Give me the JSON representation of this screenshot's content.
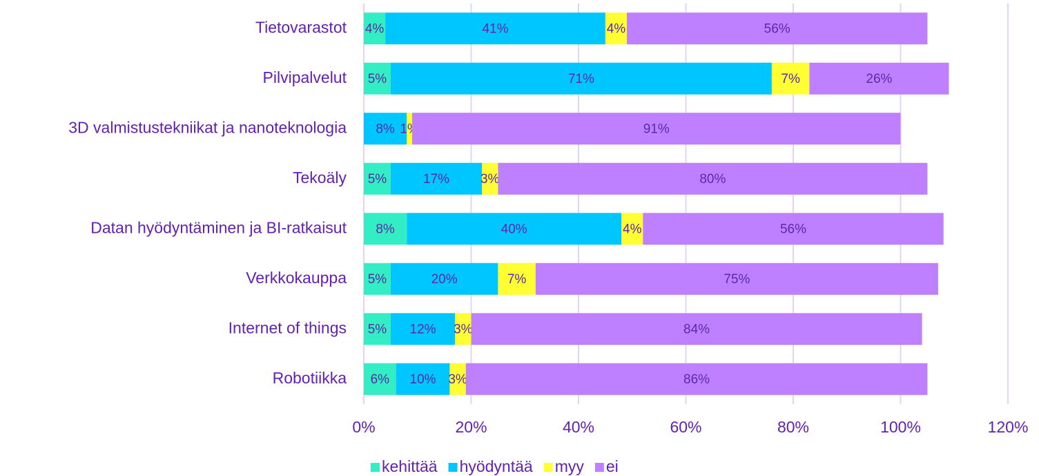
{
  "chart_data": {
    "type": "stacked_bar_horizontal",
    "categories": [
      "Tietovarastot",
      "Pilvipalvelut",
      "3D valmistustekniikat ja nanoteknologia",
      "Tekoäly",
      "Datan hyödyntäminen ja BI-ratkaisut",
      "Verkkokauppa",
      "Internet of things",
      "Robotiikka"
    ],
    "series": [
      {
        "name": "kehittää",
        "color": "#33eec4",
        "values": [
          4,
          5,
          null,
          5,
          8,
          5,
          5,
          6
        ],
        "value_labels": [
          "4%",
          "5%",
          null,
          "5%",
          "8%",
          "5%",
          "5%",
          "6%"
        ]
      },
      {
        "name": "hyödyntää",
        "color": "#00c6ff",
        "values": [
          41,
          71,
          8,
          17,
          40,
          20,
          12,
          10
        ],
        "value_labels": [
          "41%",
          "71%",
          "8%",
          "17%",
          "40%",
          "20%",
          "12%",
          "10%"
        ]
      },
      {
        "name": "myy",
        "color": "#ffff33",
        "values": [
          4,
          7,
          1,
          3,
          4,
          7,
          3,
          3
        ],
        "value_labels": [
          "4%",
          "7%",
          "1%",
          "3%",
          "4%",
          "7%",
          "3%",
          "3%"
        ]
      },
      {
        "name": "ei",
        "color": "#bf80ff",
        "values": [
          56,
          26,
          91,
          80,
          56,
          75,
          84,
          86
        ],
        "value_labels": [
          "56%",
          "26%",
          "91%",
          "80%",
          "56%",
          "75%",
          "84%",
          "86%"
        ]
      }
    ],
    "xlim": [
      0,
      120
    ],
    "xticks": [
      {
        "value": 0,
        "label": "0%"
      },
      {
        "value": 20,
        "label": "20%"
      },
      {
        "value": 40,
        "label": "40%"
      },
      {
        "value": 60,
        "label": "60%"
      },
      {
        "value": 80,
        "label": "80%"
      },
      {
        "value": 100,
        "label": "100%"
      },
      {
        "value": 120,
        "label": "120%"
      }
    ],
    "grid": true,
    "legend": "bottom"
  }
}
